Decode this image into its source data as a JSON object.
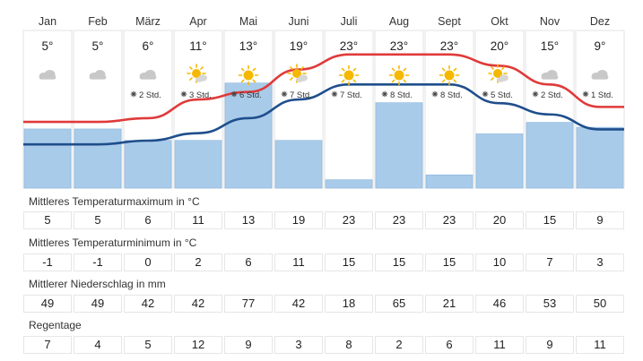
{
  "months": [
    "Jan",
    "Feb",
    "März",
    "Apr",
    "Mai",
    "Juni",
    "Juli",
    "Aug",
    "Sept",
    "Okt",
    "Nov",
    "Dez"
  ],
  "temp_max_labels": [
    "5°",
    "5°",
    "6°",
    "11°",
    "13°",
    "19°",
    "23°",
    "23°",
    "23°",
    "20°",
    "15°",
    "9°"
  ],
  "sun_hours": [
    "",
    "",
    "2 Std.",
    "3 Std.",
    "6 Std.",
    "7 Std.",
    "7 Std.",
    "8 Std.",
    "8 Std.",
    "5 Std.",
    "2 Std.",
    "1 Std."
  ],
  "weather_icons": [
    "cloud-icon",
    "cloud-icon",
    "cloud-icon",
    "sun-cloud-icon",
    "sun-icon",
    "sun-cloud-icon",
    "sun-icon",
    "sun-icon",
    "sun-icon",
    "sun-cloud-icon",
    "cloud-icon",
    "cloud-icon"
  ],
  "colors": {
    "max_line": "#e03a3a",
    "min_line": "#1f4e8c",
    "precip_bar": "#a9cbea",
    "precip_bar_border": "#86b2da",
    "sun": "#f5b800",
    "cloud": "#c8c8c8"
  },
  "sections": {
    "temp_max": {
      "label": "Mittleres Temperaturmaximum in °C",
      "values": [
        "5",
        "5",
        "6",
        "11",
        "13",
        "19",
        "23",
        "23",
        "23",
        "20",
        "15",
        "9"
      ]
    },
    "temp_min": {
      "label": "Mittleres Temperaturminimum in °C",
      "values": [
        "-1",
        "-1",
        "0",
        "2",
        "6",
        "11",
        "15",
        "15",
        "15",
        "10",
        "7",
        "3"
      ]
    },
    "precip": {
      "label": "Mittlerer Niederschlag in mm",
      "values": [
        "49",
        "49",
        "42",
        "42",
        "77",
        "42",
        "18",
        "65",
        "21",
        "46",
        "53",
        "50"
      ]
    },
    "rain_days": {
      "label": "Regentage",
      "values": [
        "7",
        "4",
        "5",
        "12",
        "9",
        "3",
        "8",
        "2",
        "6",
        "11",
        "9",
        "11"
      ]
    }
  },
  "chart_data": {
    "type": "line",
    "categories": [
      "Jan",
      "Feb",
      "März",
      "Apr",
      "Mai",
      "Juni",
      "Juli",
      "Aug",
      "Sept",
      "Okt",
      "Nov",
      "Dez"
    ],
    "series": [
      {
        "values": [
          5,
          5,
          6,
          11,
          13,
          19,
          23,
          23,
          23,
          20,
          15,
          9
        ]
      },
      {
        "values": [
          -1,
          -1,
          0,
          2,
          6,
          11,
          15,
          15,
          15,
          10,
          7,
          3
        ]
      }
    ],
    "bars": {
      "values": [
        49,
        49,
        42,
        42,
        77,
        42,
        18,
        65,
        21,
        46,
        53,
        50
      ]
    }
  }
}
